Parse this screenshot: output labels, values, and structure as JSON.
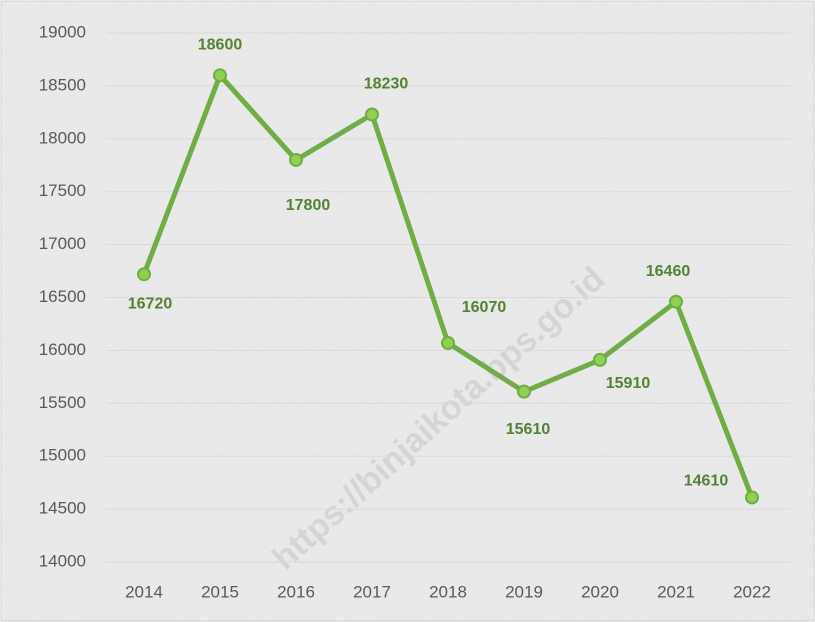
{
  "chart_data": {
    "type": "line",
    "categories": [
      "2014",
      "2015",
      "2016",
      "2017",
      "2018",
      "2019",
      "2020",
      "2021",
      "2022"
    ],
    "values": [
      16720,
      18600,
      17800,
      18230,
      16070,
      15610,
      15910,
      16460,
      14610
    ],
    "color": "#70ad47",
    "ylim": [
      14000,
      19000
    ],
    "yticks": [
      14000,
      14500,
      15000,
      15500,
      16000,
      16500,
      17000,
      17500,
      18000,
      18500,
      19000
    ],
    "grid": true,
    "watermark": "https://binjaikota.bps.go.id"
  }
}
